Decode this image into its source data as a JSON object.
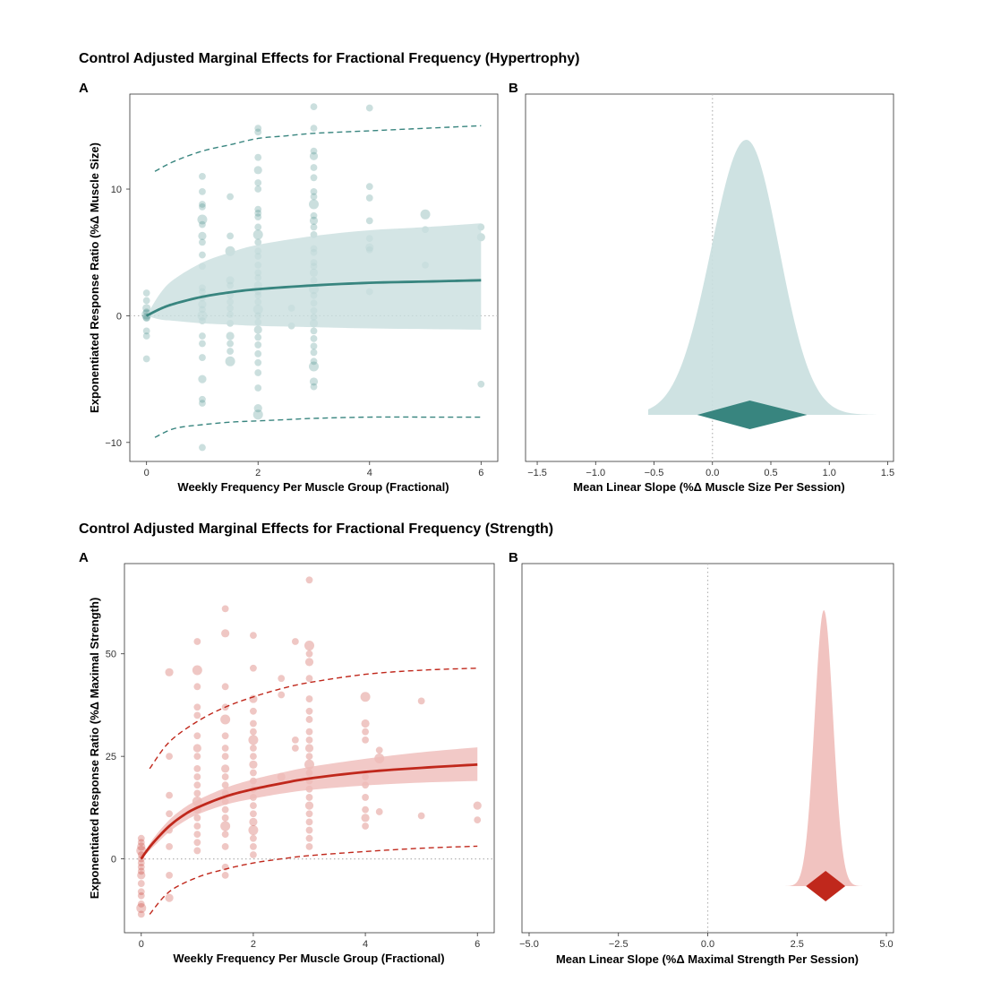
{
  "colors": {
    "teal": "#38857f",
    "teal_light": "#c9dfdf",
    "red": "#c0281c",
    "red_light": "#efbcb9",
    "ref_line": "#b5b5b5"
  },
  "sections": {
    "hyp": {
      "title": "Control Adjusted Marginal Effects for Fractional Frequency (Hypertrophy)"
    },
    "str": {
      "title": "Control Adjusted Marginal Effects for Fractional Frequency (Strength)"
    }
  },
  "chart_data": [
    {
      "id": "hypA",
      "panel_label": "A",
      "type": "scatter",
      "xlabel": "Weekly Frequency Per Muscle Group (Fractional)",
      "ylabel": "Exponentiated Response Ratio (%Δ Muscle Size)",
      "xlim": [
        -0.3,
        6.3
      ],
      "ylim": [
        -11.5,
        17.5
      ],
      "xticks": [
        0,
        2,
        4,
        6
      ],
      "yticks": [
        -10,
        0,
        10
      ],
      "reference_line_y": 0,
      "mean_curve": {
        "x": [
          0,
          0.25,
          0.5,
          1,
          1.5,
          2,
          3,
          4,
          5,
          6
        ],
        "y": [
          0,
          0.55,
          0.95,
          1.5,
          1.85,
          2.1,
          2.4,
          2.6,
          2.7,
          2.8
        ]
      },
      "ci_band": {
        "x": [
          0,
          0.25,
          0.5,
          1,
          1.5,
          2,
          3,
          4,
          5,
          6
        ],
        "upper": [
          0,
          1.8,
          2.9,
          4.2,
          5.0,
          5.6,
          6.3,
          6.75,
          7.0,
          7.3
        ],
        "lower": [
          0,
          -0.3,
          -0.4,
          -0.6,
          -0.7,
          -0.8,
          -0.9,
          -1.0,
          -1.05,
          -1.1
        ]
      },
      "prediction_upper": {
        "x": [
          0.15,
          0.5,
          1,
          1.5,
          2,
          2.5,
          3,
          4,
          5,
          6
        ],
        "y": [
          11.4,
          12.2,
          13.0,
          13.5,
          14.0,
          14.2,
          14.4,
          14.6,
          14.8,
          15.0
        ]
      },
      "prediction_lower": {
        "x": [
          0.15,
          0.5,
          1,
          1.5,
          2,
          2.5,
          3,
          4,
          5,
          6
        ],
        "y": [
          -9.6,
          -8.9,
          -8.6,
          -8.4,
          -8.3,
          -8.2,
          -8.1,
          -8.0,
          -8.0,
          -8.0
        ]
      },
      "points": [
        [
          0,
          1.8
        ],
        [
          0,
          1.2
        ],
        [
          0,
          0.6
        ],
        [
          0,
          0.1
        ],
        [
          0,
          -0.2
        ],
        [
          0,
          -1.2
        ],
        [
          0,
          -1.6
        ],
        [
          0,
          -3.4
        ],
        [
          0,
          0.3
        ],
        [
          0,
          -0.1
        ],
        [
          1,
          11
        ],
        [
          1,
          9.8
        ],
        [
          1,
          8.8
        ],
        [
          1,
          8.6
        ],
        [
          1,
          7.6
        ],
        [
          1,
          7.2
        ],
        [
          1,
          6.3
        ],
        [
          1,
          5.8
        ],
        [
          1,
          4.8
        ],
        [
          1,
          3.9
        ],
        [
          1,
          2.2
        ],
        [
          1,
          1.9
        ],
        [
          1,
          1.4
        ],
        [
          1,
          0.9
        ],
        [
          1,
          0.5
        ],
        [
          1,
          0
        ],
        [
          1,
          -0.4
        ],
        [
          1,
          -1.6
        ],
        [
          1,
          -2.2
        ],
        [
          1,
          -3.3
        ],
        [
          1,
          -5.0
        ],
        [
          1,
          -6.6
        ],
        [
          1,
          -6.9
        ],
        [
          1,
          -10.4
        ],
        [
          1.5,
          9.4
        ],
        [
          1.5,
          6.3
        ],
        [
          1.5,
          5.1
        ],
        [
          1.5,
          2.8
        ],
        [
          1.5,
          2.4
        ],
        [
          1.5,
          1.6
        ],
        [
          1.5,
          1.1
        ],
        [
          1.5,
          0.6
        ],
        [
          1.5,
          0.1
        ],
        [
          1.5,
          -0.6
        ],
        [
          1.5,
          -1.6
        ],
        [
          1.5,
          -2.2
        ],
        [
          1.5,
          -2.8
        ],
        [
          1.5,
          -3.6
        ],
        [
          2,
          14.8
        ],
        [
          2,
          14.5
        ],
        [
          2,
          12.5
        ],
        [
          2,
          11.5
        ],
        [
          2,
          10.5
        ],
        [
          2,
          10.0
        ],
        [
          2,
          8.4
        ],
        [
          2,
          8.1
        ],
        [
          2,
          7.8
        ],
        [
          2,
          7.0
        ],
        [
          2,
          6.4
        ],
        [
          2,
          5.8
        ],
        [
          2,
          5.1
        ],
        [
          2,
          4.7
        ],
        [
          2,
          4.0
        ],
        [
          2,
          3.4
        ],
        [
          2,
          3.0
        ],
        [
          2,
          2.4
        ],
        [
          2,
          1.9
        ],
        [
          2,
          1.6
        ],
        [
          2,
          1.1
        ],
        [
          2,
          0.5
        ],
        [
          2,
          0
        ],
        [
          2,
          -0.5
        ],
        [
          2,
          -1.1
        ],
        [
          2,
          -1.7
        ],
        [
          2,
          -2.3
        ],
        [
          2,
          -3.0
        ],
        [
          2,
          -3.7
        ],
        [
          2,
          -4.5
        ],
        [
          2,
          -5.7
        ],
        [
          2,
          -7.3
        ],
        [
          2,
          -7.8
        ],
        [
          2.6,
          0.6
        ],
        [
          2.6,
          -0.8
        ],
        [
          3,
          16.5
        ],
        [
          3,
          14.8
        ],
        [
          3,
          13.0
        ],
        [
          3,
          12.6
        ],
        [
          3,
          11.7
        ],
        [
          3,
          10.9
        ],
        [
          3,
          9.8
        ],
        [
          3,
          9.4
        ],
        [
          3,
          8.8
        ],
        [
          3,
          7.9
        ],
        [
          3,
          7.5
        ],
        [
          3,
          7.0
        ],
        [
          3,
          6.4
        ],
        [
          3,
          5.3
        ],
        [
          3,
          5.0
        ],
        [
          3,
          4.2
        ],
        [
          3,
          3.9
        ],
        [
          3,
          3.4
        ],
        [
          3,
          2.8
        ],
        [
          3,
          2.1
        ],
        [
          3,
          1.6
        ],
        [
          3,
          1.0
        ],
        [
          3,
          0.4
        ],
        [
          3,
          -0.1
        ],
        [
          3,
          -0.6
        ],
        [
          3,
          -1.2
        ],
        [
          3,
          -1.8
        ],
        [
          3,
          -2.4
        ],
        [
          3,
          -2.9
        ],
        [
          3,
          -3.6
        ],
        [
          3,
          -4.0
        ],
        [
          3,
          -5.2
        ],
        [
          3,
          -5.6
        ],
        [
          4,
          16.4
        ],
        [
          4,
          10.2
        ],
        [
          4,
          9.3
        ],
        [
          4,
          7.5
        ],
        [
          4,
          6.1
        ],
        [
          4,
          5.4
        ],
        [
          4,
          5.2
        ],
        [
          4,
          1.9
        ],
        [
          5,
          8.0
        ],
        [
          5,
          6.8
        ],
        [
          5,
          4.0
        ],
        [
          6,
          7.0
        ],
        [
          6,
          6.2
        ],
        [
          6,
          -5.4
        ]
      ]
    },
    {
      "id": "hypB",
      "panel_label": "B",
      "type": "area",
      "xlabel": "Mean Linear Slope (%Δ Muscle Size Per Session)",
      "xlim": [
        -1.6,
        1.55
      ],
      "xticks": [
        -1.5,
        -1.0,
        -0.5,
        0.0,
        0.5,
        1.0,
        1.5
      ],
      "xtick_labels": [
        "−1.5",
        "−1.0",
        "−0.5",
        "0.0",
        "0.5",
        "1.0",
        "1.5"
      ],
      "reference_line_x": 0,
      "density": {
        "mode": 0.29,
        "sd_left": 0.3,
        "sd_right": 0.28,
        "range": [
          -0.55,
          1.4
        ]
      },
      "interval": {
        "low": -0.13,
        "median": 0.32,
        "high": 0.81
      }
    },
    {
      "id": "strA",
      "panel_label": "A",
      "type": "scatter",
      "xlabel": "Weekly Frequency Per Muscle Group (Fractional)",
      "ylabel": "Exponentiated Response Ratio (%Δ Maximal Strength)",
      "xlim": [
        -0.3,
        6.3
      ],
      "ylim": [
        -18,
        72
      ],
      "xticks": [
        0,
        2,
        4,
        6
      ],
      "yticks": [
        0,
        25,
        50
      ],
      "reference_line_y": 0,
      "mean_curve": {
        "x": [
          0,
          0.1,
          0.25,
          0.5,
          0.75,
          1,
          1.5,
          2,
          2.5,
          3,
          4,
          5,
          6
        ],
        "y": [
          0,
          2.0,
          4.5,
          8.0,
          10.6,
          12.5,
          15.2,
          17.0,
          18.4,
          19.6,
          21.2,
          22.2,
          23.0
        ]
      },
      "ci_band": {
        "x": [
          0,
          0.1,
          0.25,
          0.5,
          0.75,
          1,
          1.5,
          2,
          2.5,
          3,
          4,
          5,
          6
        ],
        "upper": [
          0,
          2.6,
          5.6,
          9.5,
          12.3,
          14.3,
          17.3,
          19.4,
          21.0,
          22.4,
          24.4,
          26.0,
          27.2
        ],
        "lower": [
          0,
          1.4,
          3.4,
          6.6,
          9.0,
          10.8,
          13.2,
          14.7,
          15.9,
          16.8,
          17.9,
          18.6,
          19.0
        ]
      },
      "prediction_upper": {
        "x": [
          0.15,
          0.5,
          1,
          1.5,
          2,
          2.5,
          3,
          4,
          5,
          6
        ],
        "y": [
          22.0,
          28.5,
          33.5,
          37.0,
          39.5,
          41.5,
          43.0,
          45.0,
          46.0,
          46.5
        ]
      },
      "prediction_lower": {
        "x": [
          0.15,
          0.5,
          1,
          1.5,
          2,
          2.5,
          3,
          4,
          5,
          6
        ],
        "y": [
          -13.5,
          -8.0,
          -4.5,
          -2.5,
          -1.0,
          0.0,
          0.8,
          1.8,
          2.6,
          3.1
        ]
      },
      "points": [
        [
          0,
          5
        ],
        [
          0,
          4
        ],
        [
          0,
          3
        ],
        [
          0,
          2
        ],
        [
          0,
          1
        ],
        [
          0,
          0
        ],
        [
          0,
          -1
        ],
        [
          0,
          -2
        ],
        [
          0,
          -3
        ],
        [
          0,
          -4
        ],
        [
          0,
          -6
        ],
        [
          0,
          -8
        ],
        [
          0,
          -9
        ],
        [
          0,
          -11
        ],
        [
          0,
          -12
        ],
        [
          0,
          -13.5
        ],
        [
          0.5,
          45.5
        ],
        [
          0.5,
          25
        ],
        [
          0.5,
          15.5
        ],
        [
          0.5,
          11
        ],
        [
          0.5,
          7
        ],
        [
          0.5,
          3
        ],
        [
          0.5,
          -4
        ],
        [
          0.5,
          -9.5
        ],
        [
          1,
          53
        ],
        [
          1,
          46
        ],
        [
          1,
          42
        ],
        [
          1,
          37
        ],
        [
          1,
          35
        ],
        [
          1,
          30
        ],
        [
          1,
          27
        ],
        [
          1,
          25
        ],
        [
          1,
          22
        ],
        [
          1,
          20
        ],
        [
          1,
          18
        ],
        [
          1,
          16
        ],
        [
          1,
          14
        ],
        [
          1,
          12
        ],
        [
          1,
          10
        ],
        [
          1,
          8
        ],
        [
          1,
          6
        ],
        [
          1,
          4
        ],
        [
          1,
          2
        ],
        [
          1.5,
          61
        ],
        [
          1.5,
          55
        ],
        [
          1.5,
          42
        ],
        [
          1.5,
          37
        ],
        [
          1.5,
          34
        ],
        [
          1.5,
          30
        ],
        [
          1.5,
          27
        ],
        [
          1.5,
          25
        ],
        [
          1.5,
          22
        ],
        [
          1.5,
          20
        ],
        [
          1.5,
          18
        ],
        [
          1.5,
          16
        ],
        [
          1.5,
          14
        ],
        [
          1.5,
          12
        ],
        [
          1.5,
          10
        ],
        [
          1.5,
          8
        ],
        [
          1.5,
          6
        ],
        [
          1.5,
          3
        ],
        [
          1.5,
          -2
        ],
        [
          1.5,
          -4
        ],
        [
          2,
          54.5
        ],
        [
          2,
          46.5
        ],
        [
          2,
          39
        ],
        [
          2,
          36
        ],
        [
          2,
          33
        ],
        [
          2,
          31
        ],
        [
          2,
          29
        ],
        [
          2,
          27
        ],
        [
          2,
          25
        ],
        [
          2,
          23
        ],
        [
          2,
          21
        ],
        [
          2,
          19
        ],
        [
          2,
          17
        ],
        [
          2,
          15
        ],
        [
          2,
          13
        ],
        [
          2,
          11
        ],
        [
          2,
          9
        ],
        [
          2,
          7
        ],
        [
          2,
          5
        ],
        [
          2,
          3
        ],
        [
          2,
          1
        ],
        [
          2.5,
          44
        ],
        [
          2.5,
          40
        ],
        [
          2.5,
          20
        ],
        [
          2.75,
          53
        ],
        [
          2.75,
          29
        ],
        [
          2.75,
          27
        ],
        [
          3,
          68
        ],
        [
          3,
          52
        ],
        [
          3,
          50
        ],
        [
          3,
          48
        ],
        [
          3,
          44
        ],
        [
          3,
          39
        ],
        [
          3,
          36
        ],
        [
          3,
          34
        ],
        [
          3,
          31
        ],
        [
          3,
          29
        ],
        [
          3,
          27
        ],
        [
          3,
          25
        ],
        [
          3,
          23
        ],
        [
          3,
          21
        ],
        [
          3,
          19
        ],
        [
          3,
          17
        ],
        [
          3,
          15
        ],
        [
          3,
          13
        ],
        [
          3,
          11
        ],
        [
          3,
          9
        ],
        [
          3,
          7
        ],
        [
          3,
          5
        ],
        [
          3,
          3
        ],
        [
          4,
          39.5
        ],
        [
          4,
          33
        ],
        [
          4,
          31
        ],
        [
          4,
          29
        ],
        [
          4,
          20
        ],
        [
          4,
          18
        ],
        [
          4,
          15
        ],
        [
          4,
          12
        ],
        [
          4,
          10
        ],
        [
          4,
          8
        ],
        [
          4.25,
          26.5
        ],
        [
          4.25,
          24.5
        ],
        [
          4.25,
          11.5
        ],
        [
          5,
          38.5
        ],
        [
          5,
          10.5
        ],
        [
          6,
          13
        ],
        [
          6,
          9.5
        ]
      ]
    },
    {
      "id": "strB",
      "panel_label": "B",
      "type": "area",
      "xlabel": "Mean Linear Slope (%Δ Maximal Strength Per Session)",
      "xlim": [
        -5.2,
        5.2
      ],
      "xticks": [
        -5.0,
        -2.5,
        0.0,
        2.5,
        5.0
      ],
      "xtick_labels": [
        "−5.0",
        "−2.5",
        "0.0",
        "2.5",
        "5.0"
      ],
      "reference_line_x": 0,
      "density": {
        "mode": 3.25,
        "sd_left": 0.26,
        "sd_right": 0.26,
        "range": [
          2.15,
          4.45
        ]
      },
      "interval": {
        "low": 2.75,
        "median": 3.3,
        "high": 3.85
      }
    }
  ]
}
